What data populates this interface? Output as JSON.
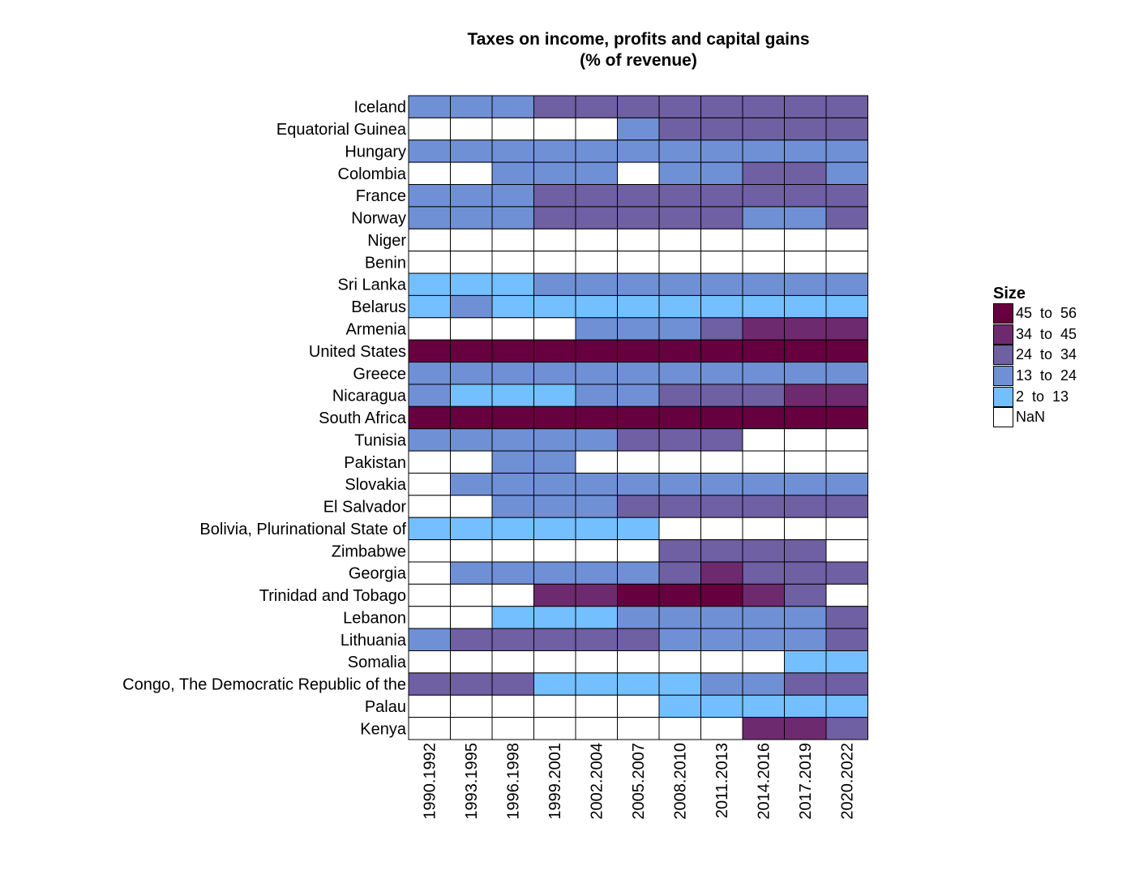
{
  "chart_data": {
    "type": "heatmap",
    "title": "Taxes on income, profits and capital gains",
    "subtitle": "(% of revenue)",
    "legend": {
      "title": "Size",
      "placement": "right",
      "bins": [
        {
          "label": "45  to  56",
          "color": "#67003f"
        },
        {
          "label": "34  to  45",
          "color": "#6e2a6e"
        },
        {
          "label": "24  to  34",
          "color": "#6f5fa3"
        },
        {
          "label": "13  to  24",
          "color": "#7090d6"
        },
        {
          "label": "2  to  13",
          "color": "#74bfff"
        },
        {
          "label": "NaN",
          "color": "#ffffff"
        }
      ]
    },
    "columns": [
      "1990.1992",
      "1993.1995",
      "1996.1998",
      "1999.2001",
      "2002.2004",
      "2005.2007",
      "2008.2010",
      "2011.2013",
      "2014.2016",
      "2017.2019",
      "2020.2022"
    ],
    "rows": [
      {
        "name": "Iceland",
        "bins": [
          "13  to  24",
          "13  to  24",
          "13  to  24",
          "24  to  34",
          "24  to  34",
          "24  to  34",
          "24  to  34",
          "24  to  34",
          "24  to  34",
          "24  to  34",
          "24  to  34"
        ]
      },
      {
        "name": "Equatorial Guinea",
        "bins": [
          "NaN",
          "NaN",
          "NaN",
          "NaN",
          "NaN",
          "13  to  24",
          "24  to  34",
          "24  to  34",
          "24  to  34",
          "24  to  34",
          "24  to  34"
        ]
      },
      {
        "name": "Hungary",
        "bins": [
          "13  to  24",
          "13  to  24",
          "13  to  24",
          "13  to  24",
          "13  to  24",
          "13  to  24",
          "13  to  24",
          "13  to  24",
          "13  to  24",
          "13  to  24",
          "13  to  24"
        ]
      },
      {
        "name": "Colombia",
        "bins": [
          "NaN",
          "NaN",
          "13  to  24",
          "13  to  24",
          "13  to  24",
          "NaN",
          "13  to  24",
          "13  to  24",
          "24  to  34",
          "24  to  34",
          "13  to  24"
        ]
      },
      {
        "name": "France",
        "bins": [
          "13  to  24",
          "13  to  24",
          "13  to  24",
          "24  to  34",
          "24  to  34",
          "24  to  34",
          "24  to  34",
          "24  to  34",
          "24  to  34",
          "24  to  34",
          "24  to  34"
        ]
      },
      {
        "name": "Norway",
        "bins": [
          "13  to  24",
          "13  to  24",
          "13  to  24",
          "24  to  34",
          "24  to  34",
          "24  to  34",
          "24  to  34",
          "24  to  34",
          "13  to  24",
          "13  to  24",
          "24  to  34"
        ]
      },
      {
        "name": "Niger",
        "bins": [
          "NaN",
          "NaN",
          "NaN",
          "NaN",
          "NaN",
          "NaN",
          "NaN",
          "NaN",
          "NaN",
          "NaN",
          "NaN"
        ]
      },
      {
        "name": "Benin",
        "bins": [
          "NaN",
          "NaN",
          "NaN",
          "NaN",
          "NaN",
          "NaN",
          "NaN",
          "NaN",
          "NaN",
          "NaN",
          "NaN"
        ]
      },
      {
        "name": "Sri Lanka",
        "bins": [
          "2  to  13",
          "2  to  13",
          "2  to  13",
          "13  to  24",
          "13  to  24",
          "13  to  24",
          "13  to  24",
          "13  to  24",
          "13  to  24",
          "13  to  24",
          "13  to  24"
        ]
      },
      {
        "name": "Belarus",
        "bins": [
          "2  to  13",
          "13  to  24",
          "2  to  13",
          "2  to  13",
          "2  to  13",
          "2  to  13",
          "2  to  13",
          "2  to  13",
          "2  to  13",
          "2  to  13",
          "2  to  13"
        ]
      },
      {
        "name": "Armenia",
        "bins": [
          "NaN",
          "NaN",
          "NaN",
          "NaN",
          "13  to  24",
          "13  to  24",
          "13  to  24",
          "24  to  34",
          "34  to  45",
          "34  to  45",
          "34  to  45"
        ]
      },
      {
        "name": "United States",
        "bins": [
          "45  to  56",
          "45  to  56",
          "45  to  56",
          "45  to  56",
          "45  to  56",
          "45  to  56",
          "45  to  56",
          "45  to  56",
          "45  to  56",
          "45  to  56",
          "45  to  56"
        ]
      },
      {
        "name": "Greece",
        "bins": [
          "13  to  24",
          "13  to  24",
          "13  to  24",
          "13  to  24",
          "13  to  24",
          "13  to  24",
          "13  to  24",
          "13  to  24",
          "13  to  24",
          "13  to  24",
          "13  to  24"
        ]
      },
      {
        "name": "Nicaragua",
        "bins": [
          "13  to  24",
          "2  to  13",
          "2  to  13",
          "2  to  13",
          "13  to  24",
          "13  to  24",
          "24  to  34",
          "24  to  34",
          "24  to  34",
          "34  to  45",
          "34  to  45"
        ]
      },
      {
        "name": "South Africa",
        "bins": [
          "45  to  56",
          "45  to  56",
          "45  to  56",
          "45  to  56",
          "45  to  56",
          "45  to  56",
          "45  to  56",
          "45  to  56",
          "45  to  56",
          "45  to  56",
          "45  to  56"
        ]
      },
      {
        "name": "Tunisia",
        "bins": [
          "13  to  24",
          "13  to  24",
          "13  to  24",
          "13  to  24",
          "13  to  24",
          "24  to  34",
          "24  to  34",
          "24  to  34",
          "NaN",
          "NaN",
          "NaN"
        ]
      },
      {
        "name": "Pakistan",
        "bins": [
          "NaN",
          "NaN",
          "13  to  24",
          "13  to  24",
          "NaN",
          "NaN",
          "NaN",
          "NaN",
          "NaN",
          "NaN",
          "NaN"
        ]
      },
      {
        "name": "Slovakia",
        "bins": [
          "NaN",
          "13  to  24",
          "13  to  24",
          "13  to  24",
          "13  to  24",
          "13  to  24",
          "13  to  24",
          "13  to  24",
          "13  to  24",
          "13  to  24",
          "13  to  24"
        ]
      },
      {
        "name": "El Salvador",
        "bins": [
          "NaN",
          "NaN",
          "13  to  24",
          "13  to  24",
          "13  to  24",
          "24  to  34",
          "24  to  34",
          "24  to  34",
          "24  to  34",
          "24  to  34",
          "24  to  34"
        ]
      },
      {
        "name": "Bolivia, Plurinational State of",
        "bins": [
          "2  to  13",
          "2  to  13",
          "2  to  13",
          "2  to  13",
          "2  to  13",
          "2  to  13",
          "NaN",
          "NaN",
          "NaN",
          "NaN",
          "NaN"
        ]
      },
      {
        "name": "Zimbabwe",
        "bins": [
          "NaN",
          "NaN",
          "NaN",
          "NaN",
          "NaN",
          "NaN",
          "24  to  34",
          "24  to  34",
          "24  to  34",
          "24  to  34",
          "NaN"
        ]
      },
      {
        "name": "Georgia",
        "bins": [
          "NaN",
          "13  to  24",
          "13  to  24",
          "13  to  24",
          "13  to  24",
          "13  to  24",
          "24  to  34",
          "34  to  45",
          "24  to  34",
          "24  to  34",
          "24  to  34"
        ]
      },
      {
        "name": "Trinidad and Tobago",
        "bins": [
          "NaN",
          "NaN",
          "NaN",
          "34  to  45",
          "34  to  45",
          "45  to  56",
          "45  to  56",
          "45  to  56",
          "34  to  45",
          "24  to  34",
          "NaN"
        ]
      },
      {
        "name": "Lebanon",
        "bins": [
          "NaN",
          "NaN",
          "2  to  13",
          "2  to  13",
          "2  to  13",
          "13  to  24",
          "13  to  24",
          "13  to  24",
          "13  to  24",
          "13  to  24",
          "24  to  34"
        ]
      },
      {
        "name": "Lithuania",
        "bins": [
          "13  to  24",
          "24  to  34",
          "24  to  34",
          "24  to  34",
          "24  to  34",
          "24  to  34",
          "13  to  24",
          "13  to  24",
          "13  to  24",
          "13  to  24",
          "24  to  34"
        ]
      },
      {
        "name": "Somalia",
        "bins": [
          "NaN",
          "NaN",
          "NaN",
          "NaN",
          "NaN",
          "NaN",
          "NaN",
          "NaN",
          "NaN",
          "2  to  13",
          "2  to  13"
        ]
      },
      {
        "name": "Congo, The Democratic Republic of the",
        "bins": [
          "24  to  34",
          "24  to  34",
          "24  to  34",
          "2  to  13",
          "2  to  13",
          "2  to  13",
          "2  to  13",
          "13  to  24",
          "13  to  24",
          "24  to  34",
          "24  to  34"
        ]
      },
      {
        "name": "Palau",
        "bins": [
          "NaN",
          "NaN",
          "NaN",
          "NaN",
          "NaN",
          "NaN",
          "2  to  13",
          "2  to  13",
          "2  to  13",
          "2  to  13",
          "2  to  13"
        ]
      },
      {
        "name": "Kenya",
        "bins": [
          "NaN",
          "NaN",
          "NaN",
          "NaN",
          "NaN",
          "NaN",
          "NaN",
          "NaN",
          "34  to  45",
          "34  to  45",
          "24  to  34"
        ]
      }
    ]
  }
}
